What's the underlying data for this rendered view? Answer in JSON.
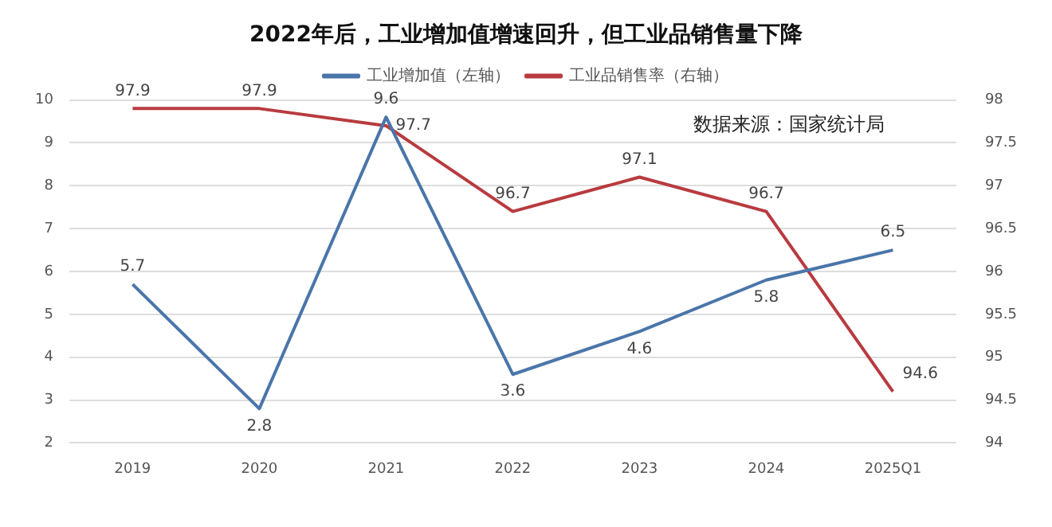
{
  "chart_data": {
    "type": "line",
    "title": "2022年后，工业增加值增速回升，但工业品销售量下降",
    "categories": [
      "2019",
      "2020",
      "2021",
      "2022",
      "2023",
      "2024",
      "2025Q1"
    ],
    "series": [
      {
        "name": "工业增加值（左轴）",
        "color": "#4a75aa",
        "values": [
          5.7,
          2.8,
          9.6,
          3.6,
          4.6,
          5.8,
          6.5
        ]
      },
      {
        "name": "工业品销售率（右轴）",
        "color": "#b83b3f",
        "axis": "y2",
        "values": [
          97.9,
          97.9,
          97.7,
          96.7,
          97.1,
          96.7,
          94.6
        ]
      }
    ],
    "ylim": [
      2,
      10
    ],
    "yticks": [
      2,
      3,
      4,
      5,
      6,
      7,
      8,
      9,
      10
    ],
    "y2lim": [
      94,
      98
    ],
    "y2ticks": [
      94,
      94.5,
      95,
      95.5,
      96,
      96.5,
      97,
      97.5,
      98
    ],
    "grid": "y",
    "legend": "top",
    "marker": "none",
    "line_style": "solid",
    "data_labels": true,
    "annotations": [
      "数据来源：国家统计局"
    ]
  }
}
